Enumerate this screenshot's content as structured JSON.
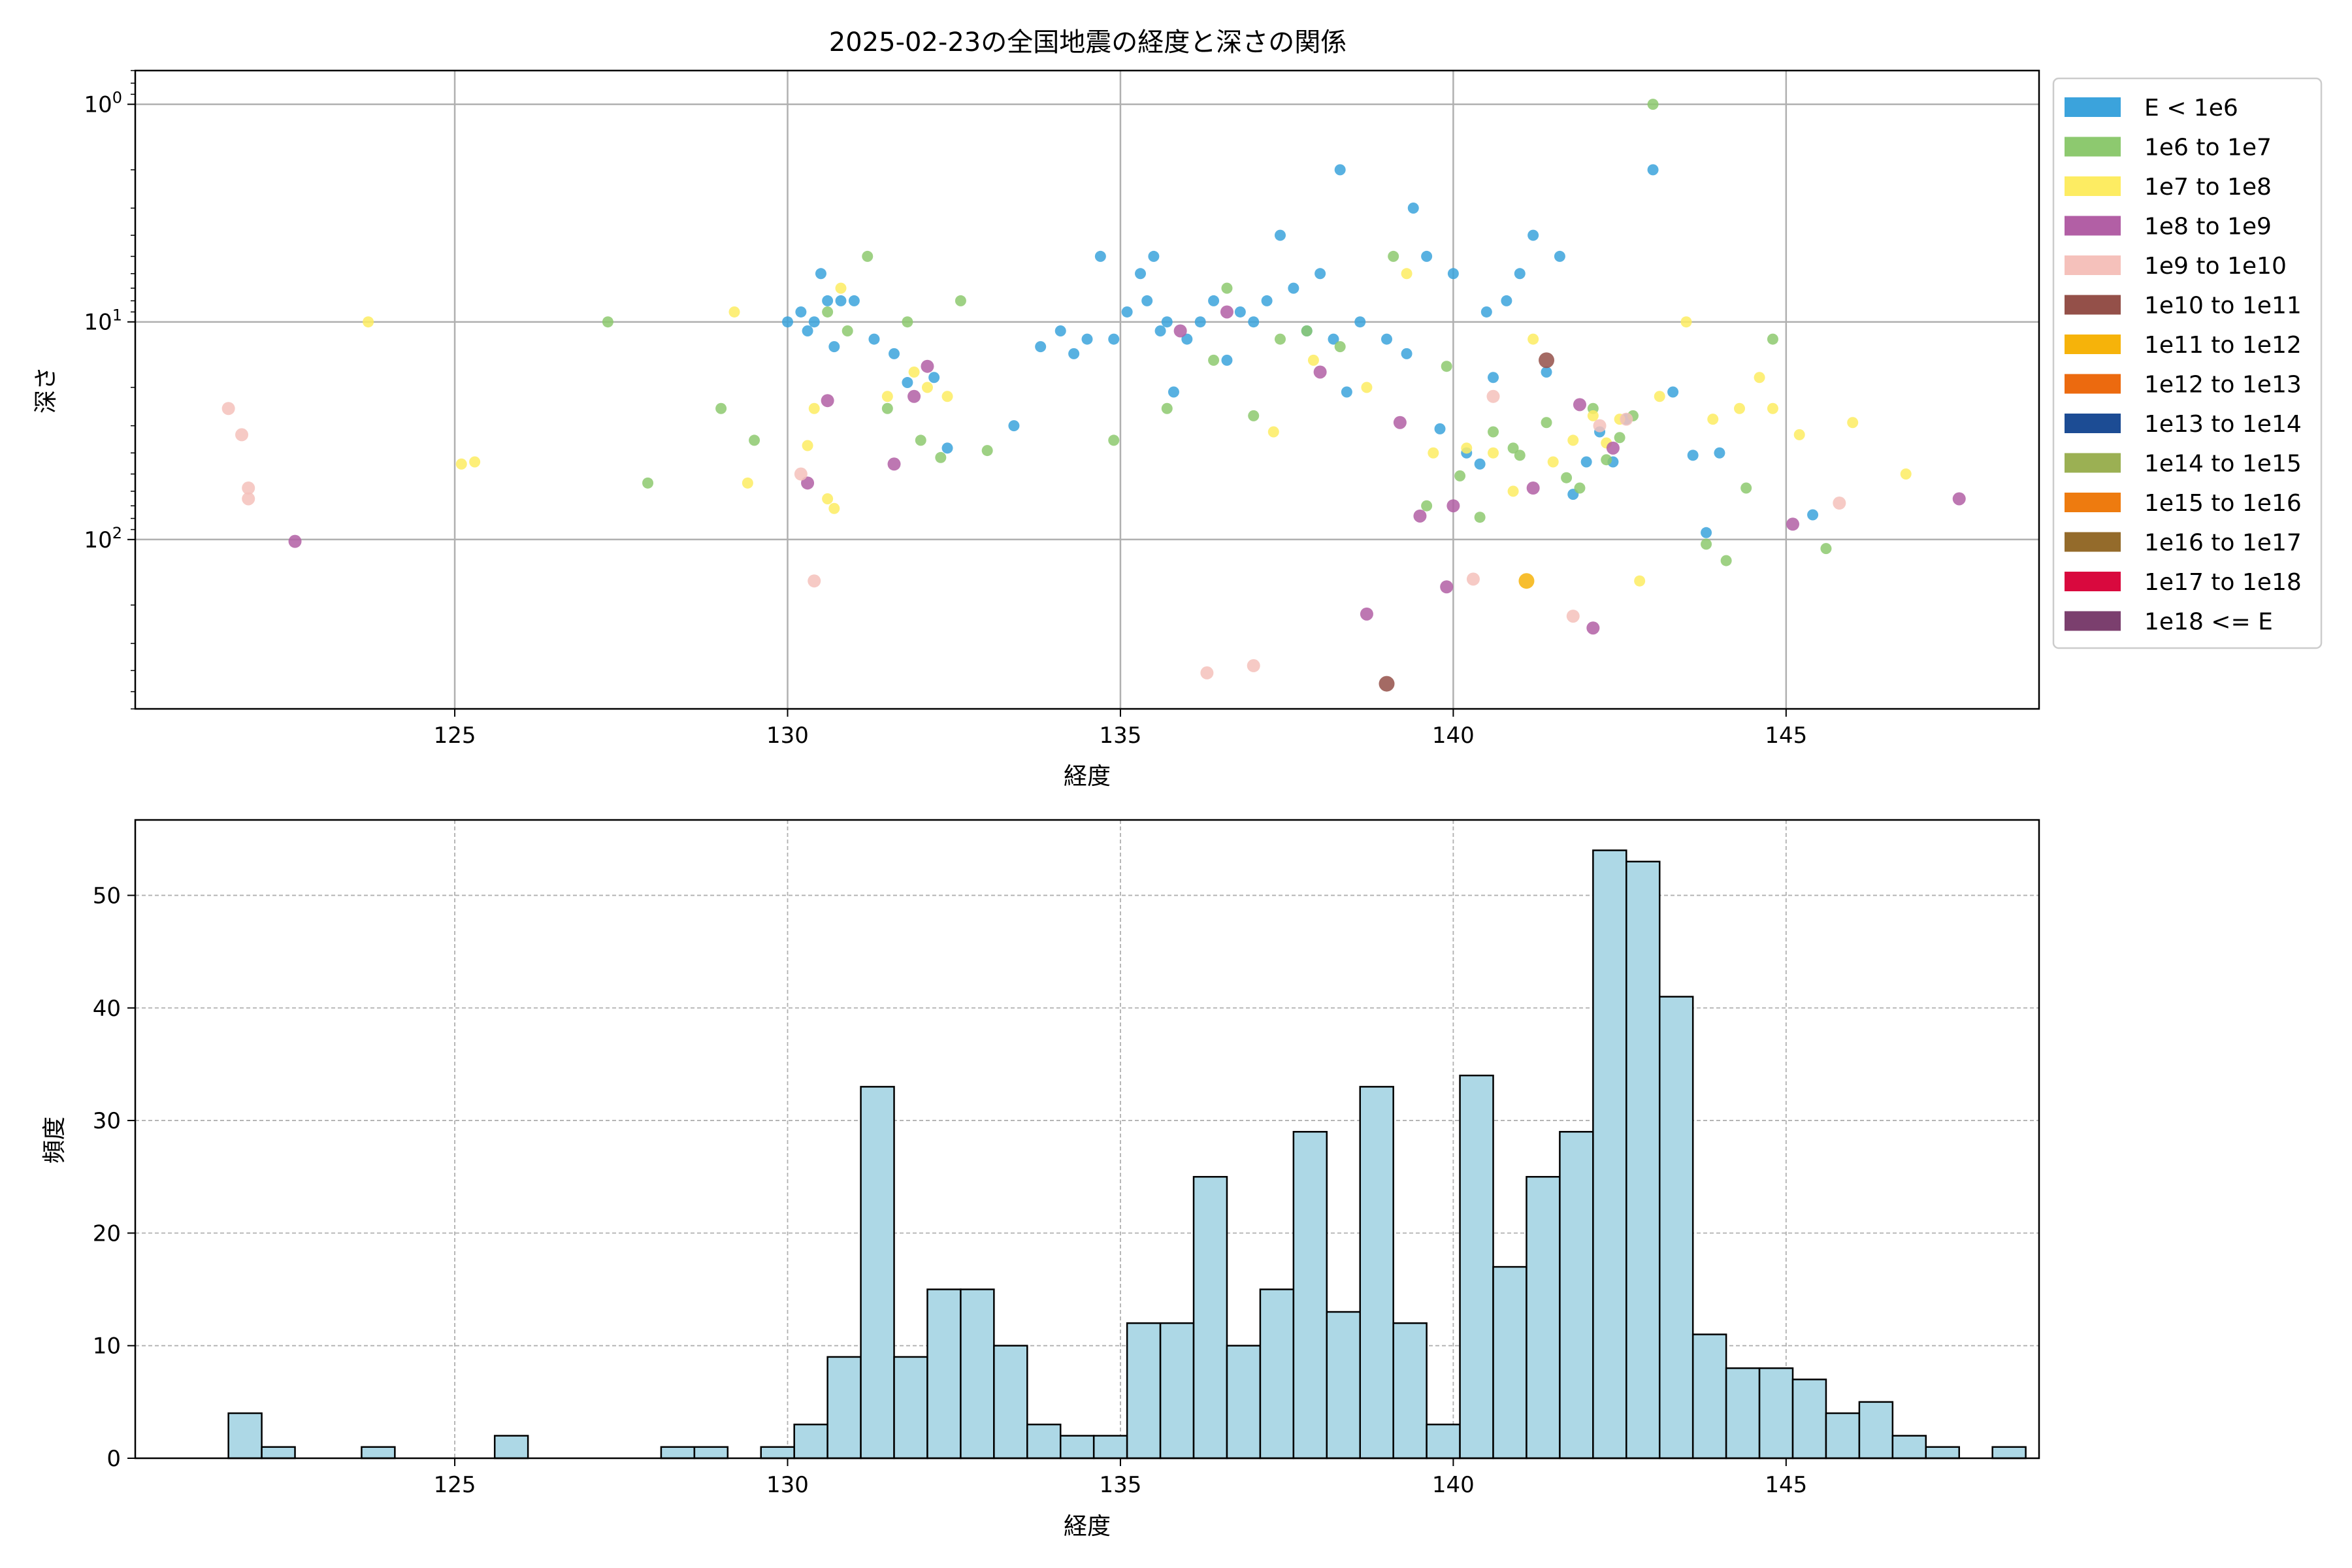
{
  "chart_data": [
    {
      "type": "scatter",
      "title": "2025-02-23の全国地震の経度と深さの関係",
      "xlabel": "経度",
      "ylabel": "深さ",
      "xlim": [
        120.2,
        148.8
      ],
      "ylim": [
        600,
        0.7
      ],
      "yscale": "log",
      "y_inverted": true,
      "grid": true,
      "x_ticks": [
        "125",
        "130",
        "135",
        "140",
        "145"
      ],
      "y_ticks": [
        {
          "value": 1,
          "base": "10",
          "exp": "0"
        },
        {
          "value": 10,
          "base": "10",
          "exp": "1"
        },
        {
          "value": 100,
          "base": "10",
          "exp": "2"
        }
      ],
      "legend_position": "outside-right",
      "legend": [
        {
          "label": "E < 1e6",
          "color": "#3ba3dc"
        },
        {
          "label": "1e6 to 1e7",
          "color": "#8dc96f"
        },
        {
          "label": "1e7 to 1e8",
          "color": "#fdec62"
        },
        {
          "label": "1e8 to 1e9",
          "color": "#b25fa5"
        },
        {
          "label": "1e9 to 1e10",
          "color": "#f5c1bb"
        },
        {
          "label": "1e10 to 1e11",
          "color": "#945049"
        },
        {
          "label": "1e11 to 1e12",
          "color": "#f6b30a"
        },
        {
          "label": "1e12 to 1e13",
          "color": "#ec6a0f"
        },
        {
          "label": "1e13 to 1e14",
          "color": "#1c4c94"
        },
        {
          "label": "1e14 to 1e15",
          "color": "#9bb053"
        },
        {
          "label": "1e15 to 1e16",
          "color": "#ee7b0f"
        },
        {
          "label": "1e16 to 1e17",
          "color": "#946b2b"
        },
        {
          "label": "1e17 to 1e18",
          "color": "#d9093e"
        },
        {
          "label": "1e18 <= E",
          "color": "#7b3f6e"
        }
      ],
      "series": [
        {
          "name": "E < 1e6",
          "points": [
            [
              130.0,
              10
            ],
            [
              130.2,
              9
            ],
            [
              130.3,
              11
            ],
            [
              130.4,
              10
            ],
            [
              130.5,
              6
            ],
            [
              130.6,
              8
            ],
            [
              130.7,
              13
            ],
            [
              130.8,
              8
            ],
            [
              131.0,
              8
            ],
            [
              131.3,
              12
            ],
            [
              131.6,
              14
            ],
            [
              131.8,
              19
            ],
            [
              132.2,
              18
            ],
            [
              132.4,
              38
            ],
            [
              133.4,
              30
            ],
            [
              133.8,
              13
            ],
            [
              134.1,
              11
            ],
            [
              134.3,
              14
            ],
            [
              134.5,
              12
            ],
            [
              134.7,
              5
            ],
            [
              134.9,
              12
            ],
            [
              135.1,
              9
            ],
            [
              135.3,
              6
            ],
            [
              135.4,
              8
            ],
            [
              135.5,
              5
            ],
            [
              135.6,
              11
            ],
            [
              135.7,
              10
            ],
            [
              135.8,
              21
            ],
            [
              136.0,
              12
            ],
            [
              136.2,
              10
            ],
            [
              136.4,
              8
            ],
            [
              136.6,
              15
            ],
            [
              136.8,
              9
            ],
            [
              137.0,
              10
            ],
            [
              137.2,
              8
            ],
            [
              137.4,
              4
            ],
            [
              137.6,
              7
            ],
            [
              137.8,
              11
            ],
            [
              138.0,
              6
            ],
            [
              138.2,
              12
            ],
            [
              138.3,
              2
            ],
            [
              138.4,
              21
            ],
            [
              138.6,
              10
            ],
            [
              139.0,
              12
            ],
            [
              139.3,
              14
            ],
            [
              139.4,
              3
            ],
            [
              139.6,
              5
            ],
            [
              139.8,
              31
            ],
            [
              140.0,
              6
            ],
            [
              140.2,
              40
            ],
            [
              140.4,
              45
            ],
            [
              140.5,
              9
            ],
            [
              140.6,
              18
            ],
            [
              140.8,
              8
            ],
            [
              141.0,
              6
            ],
            [
              141.2,
              4
            ],
            [
              141.4,
              17
            ],
            [
              141.6,
              5
            ],
            [
              141.8,
              62
            ],
            [
              142.0,
              44
            ],
            [
              142.2,
              32
            ],
            [
              142.4,
              44
            ],
            [
              142.6,
              28
            ],
            [
              143.0,
              2
            ],
            [
              143.3,
              21
            ],
            [
              143.6,
              41
            ],
            [
              143.8,
              93
            ],
            [
              144.0,
              40
            ],
            [
              145.4,
              77
            ]
          ]
        },
        {
          "name": "1e6 to 1e7",
          "points": [
            [
              127.3,
              10
            ],
            [
              127.9,
              55
            ],
            [
              129.0,
              25
            ],
            [
              129.5,
              35
            ],
            [
              130.6,
              9
            ],
            [
              130.9,
              11
            ],
            [
              131.2,
              5
            ],
            [
              131.5,
              25
            ],
            [
              131.8,
              10
            ],
            [
              132.0,
              35
            ],
            [
              132.3,
              42
            ],
            [
              132.6,
              8
            ],
            [
              133.0,
              39
            ],
            [
              134.9,
              35
            ],
            [
              135.7,
              25
            ],
            [
              136.4,
              15
            ],
            [
              136.6,
              7
            ],
            [
              137.0,
              27
            ],
            [
              137.4,
              12
            ],
            [
              137.8,
              11
            ],
            [
              138.3,
              13
            ],
            [
              139.1,
              5
            ],
            [
              139.6,
              70
            ],
            [
              139.9,
              16
            ],
            [
              140.1,
              51
            ],
            [
              140.4,
              79
            ],
            [
              140.6,
              32
            ],
            [
              140.9,
              38
            ],
            [
              141.0,
              41
            ],
            [
              141.4,
              29
            ],
            [
              141.7,
              52
            ],
            [
              141.9,
              58
            ],
            [
              142.1,
              25
            ],
            [
              142.3,
              43
            ],
            [
              142.5,
              34
            ],
            [
              142.7,
              27
            ],
            [
              143.0,
              1
            ],
            [
              143.8,
              105
            ],
            [
              144.1,
              125
            ],
            [
              144.4,
              58
            ],
            [
              144.8,
              12
            ],
            [
              145.6,
              110
            ]
          ]
        },
        {
          "name": "1e7 to 1e8",
          "points": [
            [
              123.7,
              10
            ],
            [
              125.1,
              45
            ],
            [
              125.3,
              44
            ],
            [
              129.2,
              9
            ],
            [
              129.4,
              55
            ],
            [
              130.3,
              37
            ],
            [
              130.4,
              25
            ],
            [
              130.6,
              65
            ],
            [
              130.7,
              72
            ],
            [
              130.8,
              7
            ],
            [
              131.5,
              22
            ],
            [
              131.9,
              17
            ],
            [
              132.1,
              20
            ],
            [
              132.4,
              22
            ],
            [
              137.3,
              32
            ],
            [
              137.9,
              15
            ],
            [
              138.7,
              20
            ],
            [
              139.3,
              6
            ],
            [
              139.7,
              40
            ],
            [
              140.2,
              38
            ],
            [
              140.6,
              40
            ],
            [
              140.9,
              60
            ],
            [
              141.2,
              12
            ],
            [
              141.5,
              44
            ],
            [
              141.8,
              35
            ],
            [
              142.1,
              27
            ],
            [
              142.3,
              36
            ],
            [
              142.5,
              28
            ],
            [
              142.8,
              155
            ],
            [
              143.1,
              22
            ],
            [
              143.5,
              10
            ],
            [
              143.9,
              28
            ],
            [
              144.3,
              25
            ],
            [
              144.6,
              18
            ],
            [
              144.8,
              25
            ],
            [
              145.2,
              33
            ],
            [
              146.0,
              29
            ],
            [
              146.8,
              50
            ]
          ]
        },
        {
          "name": "1e8 to 1e9",
          "points": [
            [
              122.6,
              102
            ],
            [
              130.3,
              55
            ],
            [
              130.6,
              23
            ],
            [
              131.6,
              45
            ],
            [
              131.9,
              22
            ],
            [
              132.1,
              16
            ],
            [
              135.9,
              11
            ],
            [
              136.6,
              9
            ],
            [
              138.0,
              17
            ],
            [
              138.7,
              220
            ],
            [
              139.2,
              29
            ],
            [
              139.5,
              78
            ],
            [
              139.9,
              165
            ],
            [
              140.0,
              70
            ],
            [
              141.2,
              58
            ],
            [
              141.9,
              24
            ],
            [
              142.1,
              255
            ],
            [
              142.4,
              38
            ],
            [
              145.1,
              85
            ],
            [
              147.6,
              65
            ]
          ]
        },
        {
          "name": "1e9 to 1e10",
          "points": [
            [
              121.6,
              25
            ],
            [
              121.8,
              33
            ],
            [
              121.9,
              58
            ],
            [
              121.9,
              65
            ],
            [
              130.2,
              50
            ],
            [
              130.4,
              155
            ],
            [
              136.3,
              410
            ],
            [
              137.0,
              380
            ],
            [
              140.3,
              152
            ],
            [
              140.6,
              22
            ],
            [
              141.8,
              225
            ],
            [
              142.2,
              30
            ],
            [
              142.6,
              28
            ],
            [
              145.8,
              68
            ]
          ]
        },
        {
          "name": "1e10 to 1e11",
          "points": [
            [
              139.0,
              460
            ],
            [
              141.4,
              15
            ]
          ]
        },
        {
          "name": "1e11 to 1e12",
          "points": [
            [
              141.1,
              155
            ]
          ]
        }
      ]
    },
    {
      "type": "bar",
      "xlabel": "経度",
      "ylabel": "頻度",
      "xlim": [
        120.2,
        148.8
      ],
      "ylim": [
        0,
        56.7
      ],
      "grid": true,
      "grid_style": "dashed",
      "bar_color": "#add8e6",
      "edge_color": "#000000",
      "x_ticks": [
        "125",
        "130",
        "135",
        "140",
        "145"
      ],
      "y_ticks": [
        "0",
        "10",
        "20",
        "30",
        "40",
        "50"
      ],
      "bin_start": 121.6,
      "bin_width": 0.5,
      "values": [
        4,
        1,
        0,
        0,
        1,
        0,
        0,
        0,
        2,
        0,
        0,
        0,
        0,
        1,
        1,
        0,
        1,
        3,
        9,
        33,
        9,
        15,
        15,
        10,
        3,
        2,
        2,
        12,
        12,
        25,
        10,
        15,
        29,
        13,
        33,
        12,
        3,
        34,
        17,
        25,
        29,
        54,
        53,
        41,
        11,
        8,
        8,
        7,
        4,
        5,
        2,
        1,
        0,
        1
      ]
    }
  ]
}
